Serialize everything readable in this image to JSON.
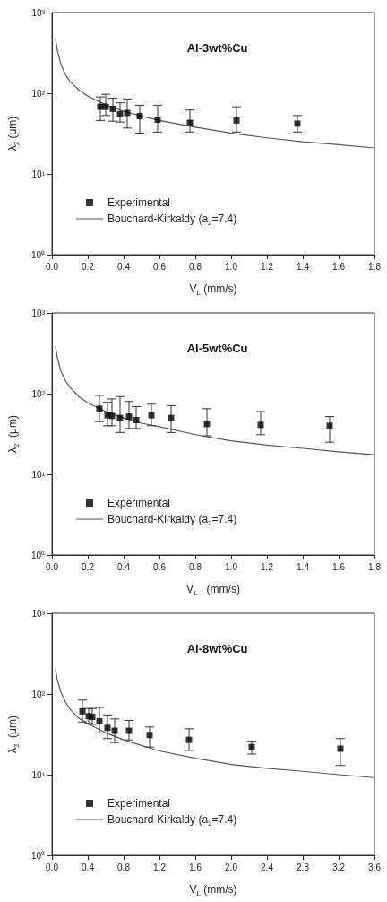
{
  "chart_data": [
    {
      "type": "scatter",
      "title": "Al-3wt%Cu",
      "xlabel": "V$_{L}$ (mm/s)",
      "ylabel": "λ$_{2}$ (μm)",
      "log": "y",
      "grid": false,
      "legend": "bottom left",
      "marker": "square",
      "xlim": [
        0,
        1.8
      ],
      "xticks": [
        {
          "value": 0,
          "label": "0.0"
        },
        0.2,
        0.4,
        0.6,
        0.8,
        {
          "value": 1,
          "label": "1.0"
        },
        1.2,
        1.4,
        1.6,
        1.8
      ],
      "ylim": [
        1,
        1000
      ],
      "yticks": [
        {
          "value": 1,
          "label": "10⁰"
        },
        {
          "value": 10,
          "label": "10¹"
        },
        {
          "value": 100,
          "label": "10²"
        },
        {
          "value": 1000,
          "label": "10³"
        }
      ],
      "series": [
        {
          "name": "Experimental",
          "color": "#000000",
          "x": [
            0.27,
            0.3,
            0.34,
            0.38,
            0.42,
            0.49,
            0.59,
            0.77,
            1.03,
            1.37
          ],
          "values": [
            68,
            68,
            64,
            55,
            57,
            52,
            47,
            43,
            46,
            42
          ],
          "errors": [
            [
              46,
              90
            ],
            [
              53,
              97
            ],
            [
              45,
              87
            ],
            [
              44,
              76
            ],
            [
              37,
              85
            ],
            [
              32,
              71
            ],
            [
              33,
              71
            ],
            [
              33,
              62
            ],
            [
              33,
              68
            ],
            [
              33,
              53
            ]
          ]
        },
        {
          "name": "Bouchard-Kirkaldy (a$_{2}$=7.4)",
          "type": "line",
          "color": "#555555",
          "line_style": "solid",
          "marker": "none",
          "x": [
            0.02,
            0.03,
            0.05,
            0.075,
            0.1,
            0.15,
            0.2,
            0.3,
            0.4,
            0.5,
            0.6,
            0.8,
            1.0,
            1.2,
            1.4,
            1.6,
            1.8
          ],
          "values": [
            470,
            340,
            230,
            170,
            140,
            110,
            92,
            72,
            60,
            52,
            46,
            38,
            32,
            28,
            25,
            23,
            21
          ]
        }
      ]
    },
    {
      "type": "scatter",
      "title": "Al-5wt%Cu",
      "xlabel": "V$_{L}$   (mm/s)",
      "ylabel": "λ$_{2}$  (μm)",
      "log": "y",
      "grid": false,
      "legend": "bottom left",
      "marker": "square",
      "xlim": [
        0,
        1.8
      ],
      "xticks": [
        {
          "value": 0,
          "label": "0.0"
        },
        0.2,
        0.4,
        0.6,
        0.8,
        {
          "value": 1,
          "label": "1.0"
        },
        1.2,
        1.4,
        1.6,
        1.8
      ],
      "ylim": [
        1,
        1000
      ],
      "yticks": [
        {
          "value": 1,
          "label": "10⁰"
        },
        {
          "value": 10,
          "label": "10¹"
        },
        {
          "value": 100,
          "label": "10²"
        },
        {
          "value": 1000,
          "label": "10³"
        }
      ],
      "series": [
        {
          "name": "Experimental",
          "color": "#000000",
          "x": [
            0.265,
            0.31,
            0.335,
            0.38,
            0.43,
            0.47,
            0.555,
            0.665,
            0.865,
            1.165,
            1.55
          ],
          "values": [
            65,
            54,
            53,
            50,
            52,
            47,
            54,
            50,
            42,
            41,
            40
          ],
          "errors": [
            [
              45,
              95
            ],
            [
              40,
              78
            ],
            [
              40,
              86
            ],
            [
              33,
              92
            ],
            [
              37,
              80
            ],
            [
              37,
              69
            ],
            [
              40,
              74
            ],
            [
              33,
              71
            ],
            [
              30,
              65
            ],
            [
              31,
              60
            ],
            [
              25,
              52
            ]
          ]
        },
        {
          "name": "Bouchard-Kirkaldy (a$_{2}$=7.4)",
          "type": "line",
          "color": "#555555",
          "line_style": "solid",
          "marker": "none",
          "x": [
            0.02,
            0.03,
            0.05,
            0.075,
            0.1,
            0.15,
            0.2,
            0.3,
            0.4,
            0.5,
            0.6,
            0.8,
            1.0,
            1.2,
            1.4,
            1.6,
            1.8
          ],
          "values": [
            380,
            280,
            190,
            145,
            120,
            92,
            77,
            60,
            50,
            43,
            39,
            31,
            26,
            23,
            21,
            19,
            17.5
          ]
        }
      ]
    },
    {
      "type": "scatter",
      "title": "Al-8wt%Cu",
      "xlabel": "V$_{L}$ (mm/s)",
      "ylabel": "λ$_{2}$  (μm)",
      "log": "y",
      "grid": false,
      "legend": "bottom left",
      "marker": "square",
      "xlim": [
        0,
        3.6
      ],
      "xticks": [
        {
          "value": 0,
          "label": "0.0"
        },
        0.4,
        0.8,
        1.2,
        1.6,
        {
          "value": 2,
          "label": "2.0"
        },
        2.4,
        2.8,
        3.2,
        3.6
      ],
      "ylim": [
        1,
        1000
      ],
      "yticks": [
        {
          "value": 1,
          "label": "10⁰"
        },
        {
          "value": 10,
          "label": "10¹"
        },
        {
          "value": 100,
          "label": "10²"
        },
        {
          "value": 1000,
          "label": "10³"
        }
      ],
      "series": [
        {
          "name": "Experimental",
          "color": "#000000",
          "x": [
            0.34,
            0.41,
            0.45,
            0.53,
            0.62,
            0.7,
            0.86,
            1.09,
            1.53,
            2.23,
            3.22
          ],
          "values": [
            61,
            53,
            52,
            46,
            38,
            35,
            35,
            31,
            27,
            22,
            21
          ],
          "errors": [
            [
              45,
              84
            ],
            [
              43,
              66
            ],
            [
              42,
              66
            ],
            [
              33,
              68
            ],
            [
              28,
              55
            ],
            [
              25,
              49
            ],
            [
              27,
              47
            ],
            [
              22,
              39
            ],
            [
              20,
              37
            ],
            [
              18,
              26
            ],
            [
              13,
              28
            ]
          ]
        },
        {
          "name": "Bouchard-Kirkaldy (a$_{2}$=7.4)",
          "type": "line",
          "color": "#555555",
          "line_style": "solid",
          "marker": "none",
          "x": [
            0.04,
            0.06,
            0.1,
            0.15,
            0.2,
            0.3,
            0.4,
            0.6,
            0.8,
            1.0,
            1.2,
            1.6,
            2.0,
            2.4,
            2.8,
            3.2,
            3.6
          ],
          "values": [
            200,
            150,
            105,
            80,
            65,
            50,
            43,
            33,
            27,
            23,
            19.7,
            16,
            13.4,
            12,
            11,
            10,
            9.2
          ]
        }
      ]
    }
  ]
}
